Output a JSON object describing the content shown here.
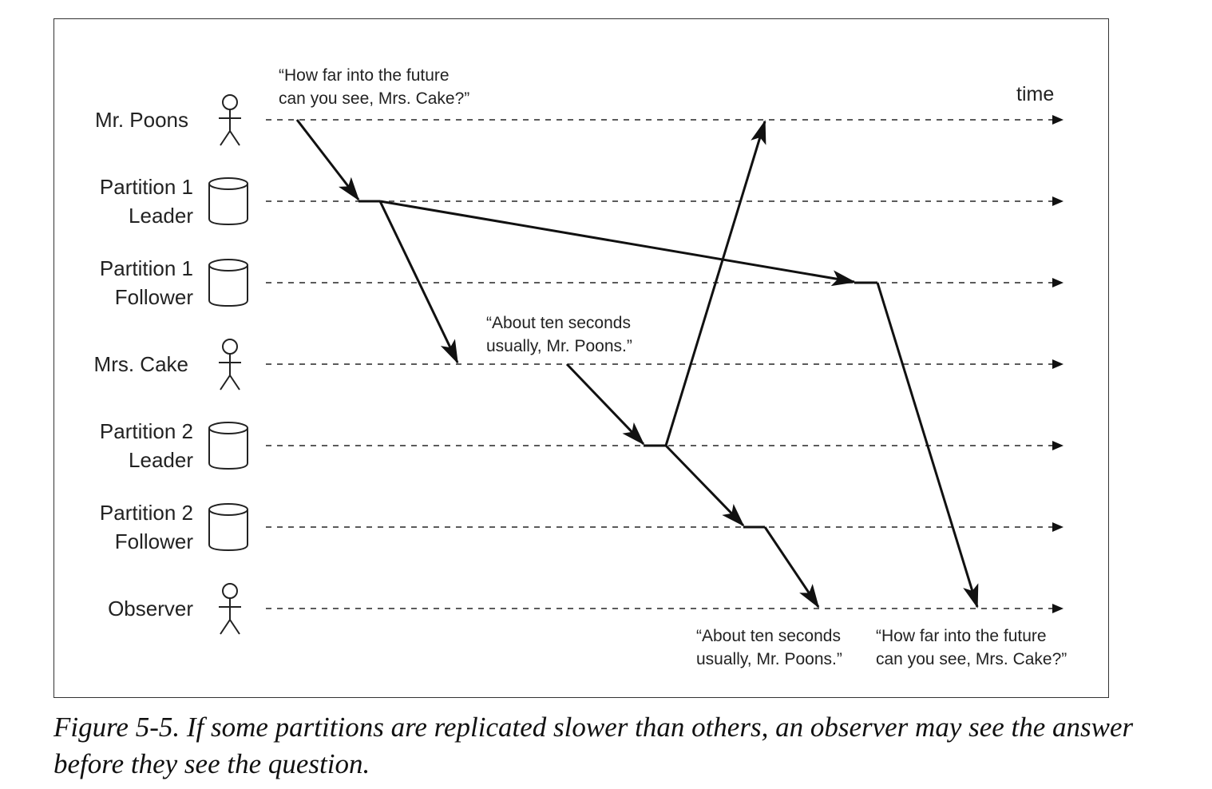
{
  "time_label": "time",
  "lanes": [
    {
      "id": "mr-poons",
      "line1": "Mr. Poons",
      "line2": "",
      "icon": "person-icon"
    },
    {
      "id": "p1-leader",
      "line1": "Partition 1",
      "line2": "Leader",
      "icon": "database-icon"
    },
    {
      "id": "p1-follower",
      "line1": "Partition 1",
      "line2": "Follower",
      "icon": "database-icon"
    },
    {
      "id": "mrs-cake",
      "line1": "Mrs. Cake",
      "line2": "",
      "icon": "person-icon"
    },
    {
      "id": "p2-leader",
      "line1": "Partition 2",
      "line2": "Leader",
      "icon": "database-icon"
    },
    {
      "id": "p2-follower",
      "line1": "Partition 2",
      "line2": "Follower",
      "icon": "database-icon"
    },
    {
      "id": "observer",
      "line1": "Observer",
      "line2": "",
      "icon": "person-icon"
    }
  ],
  "quotes": {
    "question_top": [
      "“How far into the future",
      "can you see, Mrs. Cake?”"
    ],
    "answer_mid": [
      "“About ten seconds",
      "usually, Mr. Poons.”"
    ],
    "answer_bottom": [
      "“About ten seconds",
      "usually, Mr. Poons.”"
    ],
    "question_bottom": [
      "“How far into the future",
      "can you see, Mrs. Cake?”"
    ]
  },
  "caption": "Figure 5-5. If some partitions are replicated slower than others, an observer may see the answer before they see the question."
}
